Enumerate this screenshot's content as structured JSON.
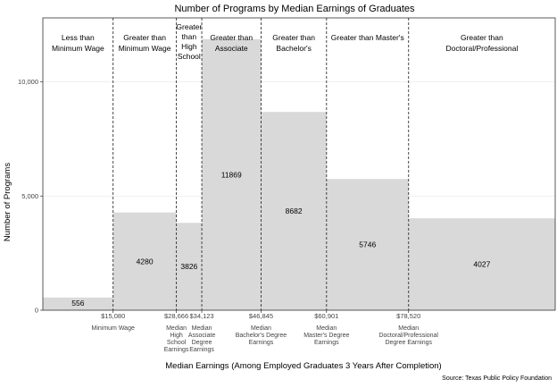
{
  "chart_data": {
    "type": "bar",
    "title": "Number of Programs by Median Earnings of Graduates",
    "xlabel": "Median Earnings (Among Employed Graduates 3 Years After Completion)",
    "ylabel": "Number of Programs",
    "source": "Source: Texas Public Policy Foundation",
    "xlim": [
      0,
      110000
    ],
    "ylim": [
      0,
      12800
    ],
    "y_ticks": [
      {
        "value": 0,
        "label": "0"
      },
      {
        "value": 5000,
        "label": "5,000"
      },
      {
        "value": 10000,
        "label": "10,000"
      }
    ],
    "grid": true,
    "thresholds": [
      {
        "value": 15080,
        "label": "$15,080",
        "sub": [
          "Minimum Wage"
        ]
      },
      {
        "value": 28666,
        "label": "$28,666",
        "sub": [
          "Median",
          "High",
          "School",
          "Earnings"
        ]
      },
      {
        "value": 34123,
        "label": "$34,123",
        "sub": [
          "Median",
          "Associate",
          "Degree",
          "Earnings"
        ]
      },
      {
        "value": 46845,
        "label": "$46,845",
        "sub": [
          "Median",
          "Bachelor's Degree",
          "Earnings"
        ]
      },
      {
        "value": 60901,
        "label": "$60,901",
        "sub": [
          "Median",
          "Master's Degree",
          "Earnings"
        ]
      },
      {
        "value": 78520,
        "label": "$78,520",
        "sub": [
          "Median",
          "Doctoral/Professional",
          "Degree Earnings"
        ]
      }
    ],
    "bins": [
      {
        "category": [
          "Less than",
          "Minimum Wage"
        ],
        "x0": 0,
        "x1": 15080,
        "value": 556
      },
      {
        "category": [
          "Greater than",
          "Minimum Wage"
        ],
        "x0": 15080,
        "x1": 28666,
        "value": 4280
      },
      {
        "category": [
          "Greater",
          "than",
          "High",
          "School"
        ],
        "x0": 28666,
        "x1": 34123,
        "value": 3826
      },
      {
        "category": [
          "Greater than",
          "Associate"
        ],
        "x0": 34123,
        "x1": 46845,
        "value": 11869
      },
      {
        "category": [
          "Greater than",
          "Bachelor's"
        ],
        "x0": 46845,
        "x1": 60901,
        "value": 8682
      },
      {
        "category": [
          "Greater than Master's"
        ],
        "x0": 60901,
        "x1": 78520,
        "value": 5746
      },
      {
        "category": [
          "Greater than",
          "Doctoral/Professional"
        ],
        "x0": 78520,
        "x1": 110000,
        "value": 4027
      }
    ],
    "colors": {
      "bar": "#d9d9d9",
      "grid": "#ebebeb",
      "axis": "#333333",
      "line": "#333333"
    }
  }
}
